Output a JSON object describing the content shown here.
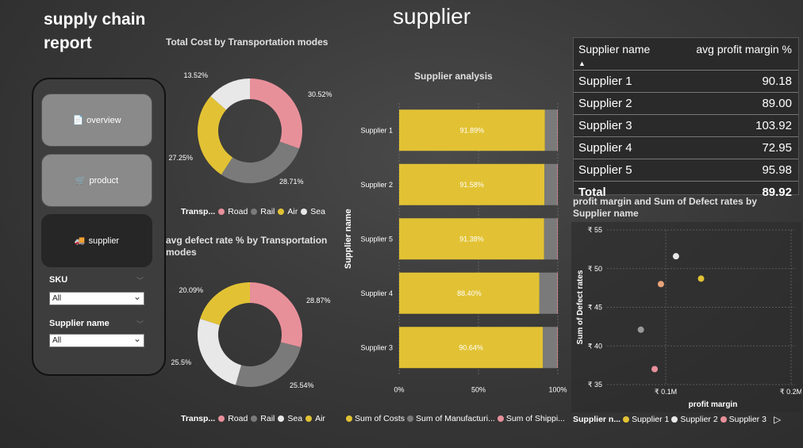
{
  "report_title": "supply chain report",
  "page_title": "supplier",
  "nav": {
    "items": [
      {
        "label": "overview",
        "icon": "document-icon"
      },
      {
        "label": "product",
        "icon": "cart-icon"
      },
      {
        "label": "supplier",
        "icon": "truck-icon",
        "active": true
      }
    ]
  },
  "slicers": {
    "sku": {
      "label": "SKU",
      "value": "All"
    },
    "supplier": {
      "label": "Supplier name",
      "value": "All"
    }
  },
  "donut_cost": {
    "title": "Total Cost by Transportation modes",
    "legend_title": "Transp...",
    "legend": [
      "Road",
      "Rail",
      "Air",
      "Sea"
    ],
    "colors": {
      "Road": "#e8909a",
      "Rail": "#7a7a7a",
      "Air": "#e2c234",
      "Sea": "#e8e8e8"
    },
    "chart_data": {
      "type": "pie",
      "categories": [
        "Road",
        "Rail",
        "Air",
        "Sea"
      ],
      "values": [
        30.52,
        28.71,
        27.25,
        13.52
      ],
      "labels": [
        "30.52%",
        "28.71%",
        "27.25%",
        "13.52%"
      ]
    }
  },
  "donut_defect": {
    "title": "avg defect rate % by Transportation modes",
    "legend_title": "Transp...",
    "legend": [
      "Road",
      "Rail",
      "Sea",
      "Air"
    ],
    "colors": {
      "Road": "#e8909a",
      "Rail": "#7a7a7a",
      "Sea": "#e8e8e8",
      "Air": "#e2c234"
    },
    "chart_data": {
      "type": "pie",
      "categories": [
        "Road",
        "Rail",
        "Sea",
        "Air"
      ],
      "values": [
        28.87,
        25.54,
        25.5,
        20.09
      ],
      "labels": [
        "28.87%",
        "25.54%",
        "25.5%",
        "20.09%"
      ]
    }
  },
  "bar_chart": {
    "title": "Supplier analysis",
    "ylabel": "Supplier name",
    "legend": [
      "Sum of Costs",
      "Sum of Manufacturi...",
      "Sum of Shippi..."
    ],
    "colors": [
      "#e2c234",
      "#7a7a7a",
      "#e8909a"
    ],
    "xticks": [
      "0%",
      "50%",
      "100%"
    ],
    "chart_data": {
      "type": "bar",
      "categories": [
        "Supplier 1",
        "Supplier 2",
        "Supplier 5",
        "Supplier 4",
        "Supplier 3"
      ],
      "series": [
        {
          "name": "Sum of Costs",
          "values": [
            91.89,
            91.58,
            91.38,
            88.4,
            90.64
          ]
        },
        {
          "name": "Sum of Manufacturi...",
          "values": [
            7.8,
            8.1,
            8.3,
            11.2,
            9.0
          ]
        },
        {
          "name": "Sum of Shippi...",
          "values": [
            0.31,
            0.32,
            0.32,
            0.4,
            0.36
          ]
        }
      ],
      "labels": [
        "91.89%",
        "91.58%",
        "91.38%",
        "88.40%",
        "90.64%"
      ],
      "xlim": [
        0,
        100
      ]
    }
  },
  "table": {
    "col1": "Supplier name",
    "col2": "avg profit margin %",
    "rows": [
      {
        "name": "Supplier 1",
        "value": "90.18"
      },
      {
        "name": "Supplier 2",
        "value": "89.00"
      },
      {
        "name": "Supplier 3",
        "value": "103.92"
      },
      {
        "name": "Supplier 4",
        "value": "72.95"
      },
      {
        "name": "Supplier 5",
        "value": "95.98"
      }
    ],
    "total_label": "Total",
    "total_value": "89.92"
  },
  "scatter": {
    "title": "profit margin and Sum of Defect rates by Supplier name",
    "xlabel": "profit margin",
    "ylabel": "Sum of Defect rates",
    "yticks": [
      "₹ 55",
      "₹ 50",
      "₹ 45",
      "₹ 40",
      "₹ 35"
    ],
    "xticks": [
      "₹ 0.1M",
      "₹ 0.2M"
    ],
    "legend_title": "Supplier n...",
    "legend": [
      "Supplier 1",
      "Supplier 2",
      "Supplier 3"
    ],
    "colors": [
      "#e2c234",
      "#e8e8e8",
      "#e8909a"
    ],
    "chart_data": {
      "type": "scatter",
      "xlim": [
        0.05,
        0.2
      ],
      "ylim": [
        35,
        55
      ],
      "points": [
        {
          "x": 0.125,
          "y": 48.7,
          "color": "#e2c234"
        },
        {
          "x": 0.105,
          "y": 51.6,
          "color": "#e8e8e8"
        },
        {
          "x": 0.093,
          "y": 48.0,
          "color": "#e8a37a"
        },
        {
          "x": 0.077,
          "y": 42.1,
          "color": "#999999"
        },
        {
          "x": 0.088,
          "y": 37.0,
          "color": "#e8909a"
        }
      ]
    }
  }
}
